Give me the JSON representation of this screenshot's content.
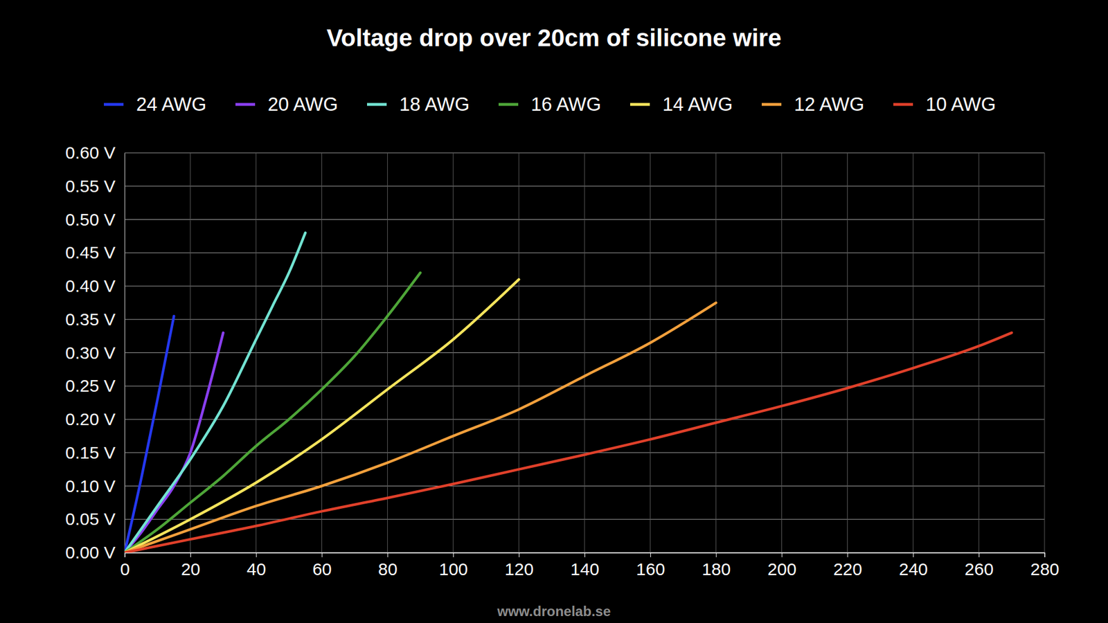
{
  "chart_data": {
    "type": "line",
    "title": "Voltage drop over 20cm of silicone wire",
    "source": "www.dronelab.se",
    "legend": "top",
    "grid": true,
    "xlim": [
      0,
      280
    ],
    "xticks": [
      0,
      20,
      40,
      60,
      80,
      100,
      120,
      140,
      160,
      180,
      200,
      220,
      240,
      260,
      280
    ],
    "ylim": [
      0,
      0.6
    ],
    "yticks": [
      {
        "value": 0,
        "label": "0.00 V"
      },
      {
        "value": 0.05,
        "label": "0.05 V"
      },
      {
        "value": 0.1,
        "label": "0.10 V"
      },
      {
        "value": 0.15,
        "label": "0.15 V"
      },
      {
        "value": 0.2,
        "label": "0.20 V"
      },
      {
        "value": 0.25,
        "label": "0.25 V"
      },
      {
        "value": 0.3,
        "label": "0.30 V"
      },
      {
        "value": 0.35,
        "label": "0.35 V"
      },
      {
        "value": 0.4,
        "label": "0.40 V"
      },
      {
        "value": 0.45,
        "label": "0.45 V"
      },
      {
        "value": 0.5,
        "label": "0.50 V"
      },
      {
        "value": 0.55,
        "label": "0.55 V"
      },
      {
        "value": 0.6,
        "label": "0.60 V"
      }
    ],
    "series": [
      {
        "name": "24 AWG",
        "color": "#2438f0",
        "x": [
          0,
          5,
          10,
          15
        ],
        "values": [
          0,
          0.11,
          0.23,
          0.355
        ]
      },
      {
        "name": "20 AWG",
        "color": "#8a3ff0",
        "x": [
          0,
          5,
          10,
          15,
          20,
          25,
          30
        ],
        "values": [
          0,
          0.03,
          0.065,
          0.1,
          0.15,
          0.235,
          0.33
        ]
      },
      {
        "name": "18 AWG",
        "color": "#72e3d2",
        "x": [
          0,
          10,
          20,
          30,
          40,
          45,
          50,
          55
        ],
        "values": [
          0,
          0.07,
          0.14,
          0.22,
          0.32,
          0.37,
          0.42,
          0.48
        ]
      },
      {
        "name": "16 AWG",
        "color": "#4ea638",
        "x": [
          0,
          10,
          20,
          30,
          40,
          50,
          60,
          70,
          80,
          90
        ],
        "values": [
          0,
          0.035,
          0.075,
          0.115,
          0.16,
          0.2,
          0.245,
          0.295,
          0.355,
          0.42
        ]
      },
      {
        "name": "14 AWG",
        "color": "#f4e45c",
        "x": [
          0,
          20,
          40,
          60,
          80,
          100,
          120
        ],
        "values": [
          0,
          0.05,
          0.105,
          0.17,
          0.245,
          0.32,
          0.41
        ]
      },
      {
        "name": "12 AWG",
        "color": "#f2a03c",
        "x": [
          0,
          20,
          40,
          60,
          80,
          100,
          120,
          140,
          160,
          180
        ],
        "values": [
          0,
          0.035,
          0.07,
          0.1,
          0.135,
          0.175,
          0.215,
          0.265,
          0.315,
          0.375
        ]
      },
      {
        "name": "10 AWG",
        "color": "#e0402a",
        "x": [
          0,
          20,
          40,
          60,
          80,
          100,
          120,
          140,
          160,
          180,
          200,
          220,
          240,
          260,
          270
        ],
        "values": [
          0,
          0.02,
          0.04,
          0.062,
          0.082,
          0.103,
          0.125,
          0.147,
          0.17,
          0.195,
          0.22,
          0.247,
          0.277,
          0.31,
          0.33
        ]
      }
    ]
  }
}
